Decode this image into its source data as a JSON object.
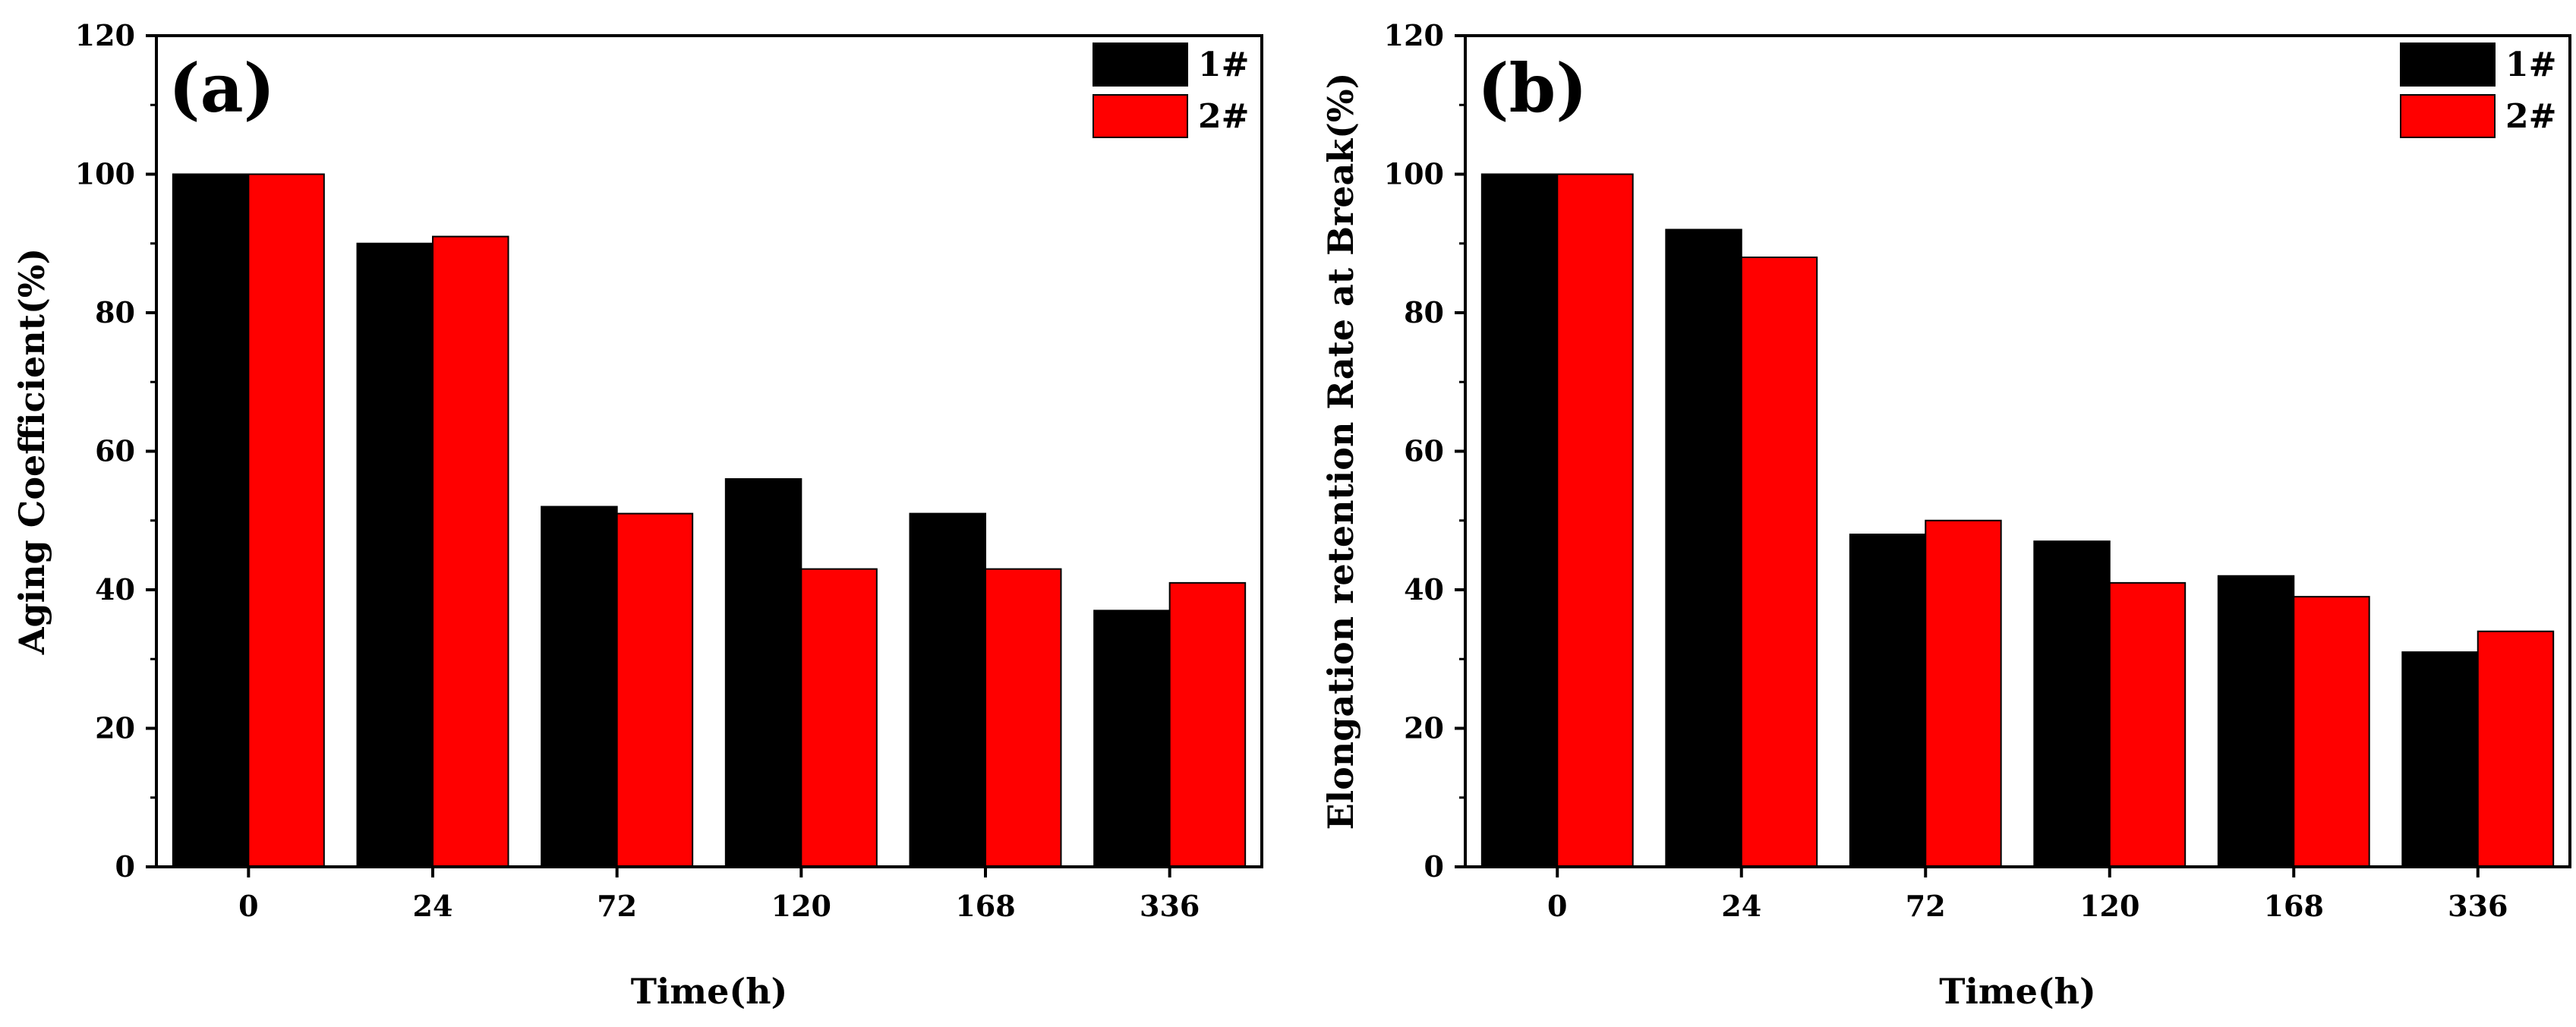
{
  "chart_data": [
    {
      "type": "bar",
      "panel_label": "(a)",
      "xlabel": "Time(h)",
      "ylabel": "Aging Coefficient(%)",
      "categories": [
        "0",
        "24",
        "72",
        "120",
        "168",
        "336"
      ],
      "series": [
        {
          "name": "1#",
          "color": "#000000",
          "values": [
            100,
            90,
            52,
            56,
            51,
            37
          ]
        },
        {
          "name": "2#",
          "color": "#ff0000",
          "values": [
            100,
            91,
            51,
            43,
            43,
            41
          ]
        }
      ],
      "ylim": [
        0,
        120
      ],
      "yticks": [
        "0",
        "20",
        "40",
        "60",
        "80",
        "100",
        "120"
      ],
      "legend_position": "top-right",
      "grid": false
    },
    {
      "type": "bar",
      "panel_label": "(b)",
      "xlabel": "Time(h)",
      "ylabel": "Elongation retention Rate at Break(%)",
      "categories": [
        "0",
        "24",
        "72",
        "120",
        "168",
        "336"
      ],
      "series": [
        {
          "name": "1#",
          "color": "#000000",
          "values": [
            100,
            92,
            48,
            47,
            42,
            31
          ]
        },
        {
          "name": "2#",
          "color": "#ff0000",
          "values": [
            100,
            88,
            50,
            41,
            39,
            34
          ]
        }
      ],
      "ylim": [
        0,
        120
      ],
      "yticks": [
        "0",
        "20",
        "40",
        "60",
        "80",
        "100",
        "120"
      ],
      "legend_position": "top-right",
      "grid": false
    }
  ]
}
